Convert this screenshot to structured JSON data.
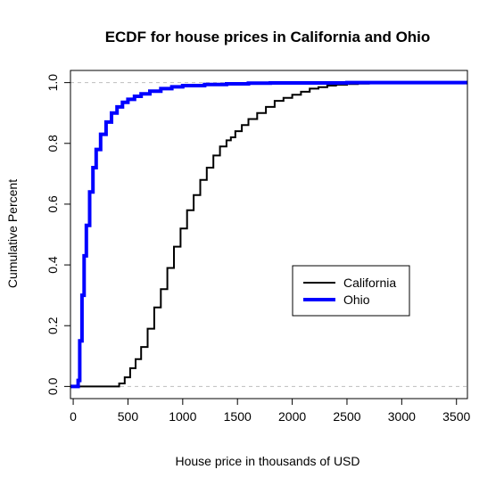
{
  "chart_data": {
    "type": "line",
    "title": "ECDF for house prices in California and Ohio",
    "xlabel": "House price in thousands of USD",
    "ylabel": "Cumulative Percent",
    "xlim": [
      -25,
      3600
    ],
    "ylim": [
      -0.04,
      1.04
    ],
    "xticks": [
      0,
      500,
      1000,
      1500,
      2000,
      2500,
      3000,
      3500
    ],
    "yticks": [
      0.0,
      0.2,
      0.4,
      0.6,
      0.8,
      1.0
    ],
    "ytick_labels": [
      "0.0",
      "0.2",
      "0.4",
      "0.6",
      "0.8",
      "1.0"
    ],
    "reference_lines": [
      0,
      1
    ],
    "grid": false,
    "legend_position": "right",
    "series": [
      {
        "name": "California",
        "color": "#000000",
        "x": [
          -25,
          100,
          200,
          300,
          380,
          420,
          470,
          520,
          570,
          620,
          680,
          740,
          800,
          860,
          920,
          980,
          1040,
          1100,
          1160,
          1220,
          1280,
          1340,
          1400,
          1440,
          1480,
          1540,
          1600,
          1680,
          1760,
          1840,
          1920,
          2000,
          2080,
          2160,
          2240,
          2320,
          2400,
          2500,
          2600,
          2700,
          2800,
          3000,
          3600
        ],
        "y": [
          0.0,
          0.0,
          0.0,
          0.0,
          0.0,
          0.01,
          0.03,
          0.06,
          0.09,
          0.13,
          0.19,
          0.26,
          0.32,
          0.39,
          0.46,
          0.52,
          0.58,
          0.63,
          0.68,
          0.72,
          0.76,
          0.79,
          0.81,
          0.82,
          0.84,
          0.86,
          0.88,
          0.9,
          0.92,
          0.94,
          0.95,
          0.96,
          0.97,
          0.98,
          0.985,
          0.99,
          0.993,
          0.995,
          0.997,
          0.998,
          0.999,
          1.0,
          1.0
        ]
      },
      {
        "name": "Ohio",
        "color": "#0000ff",
        "x": [
          -25,
          40,
          45,
          60,
          80,
          100,
          120,
          150,
          180,
          210,
          250,
          300,
          350,
          400,
          450,
          500,
          560,
          620,
          700,
          800,
          900,
          1000,
          1200,
          1400,
          1600,
          1800,
          2000,
          2500,
          3000,
          3600
        ],
        "y": [
          0.0,
          0.0,
          0.02,
          0.15,
          0.3,
          0.43,
          0.53,
          0.64,
          0.72,
          0.78,
          0.83,
          0.87,
          0.9,
          0.92,
          0.935,
          0.945,
          0.955,
          0.963,
          0.972,
          0.98,
          0.986,
          0.99,
          0.994,
          0.996,
          0.998,
          0.999,
          0.999,
          1.0,
          1.0,
          1.0
        ]
      }
    ]
  }
}
